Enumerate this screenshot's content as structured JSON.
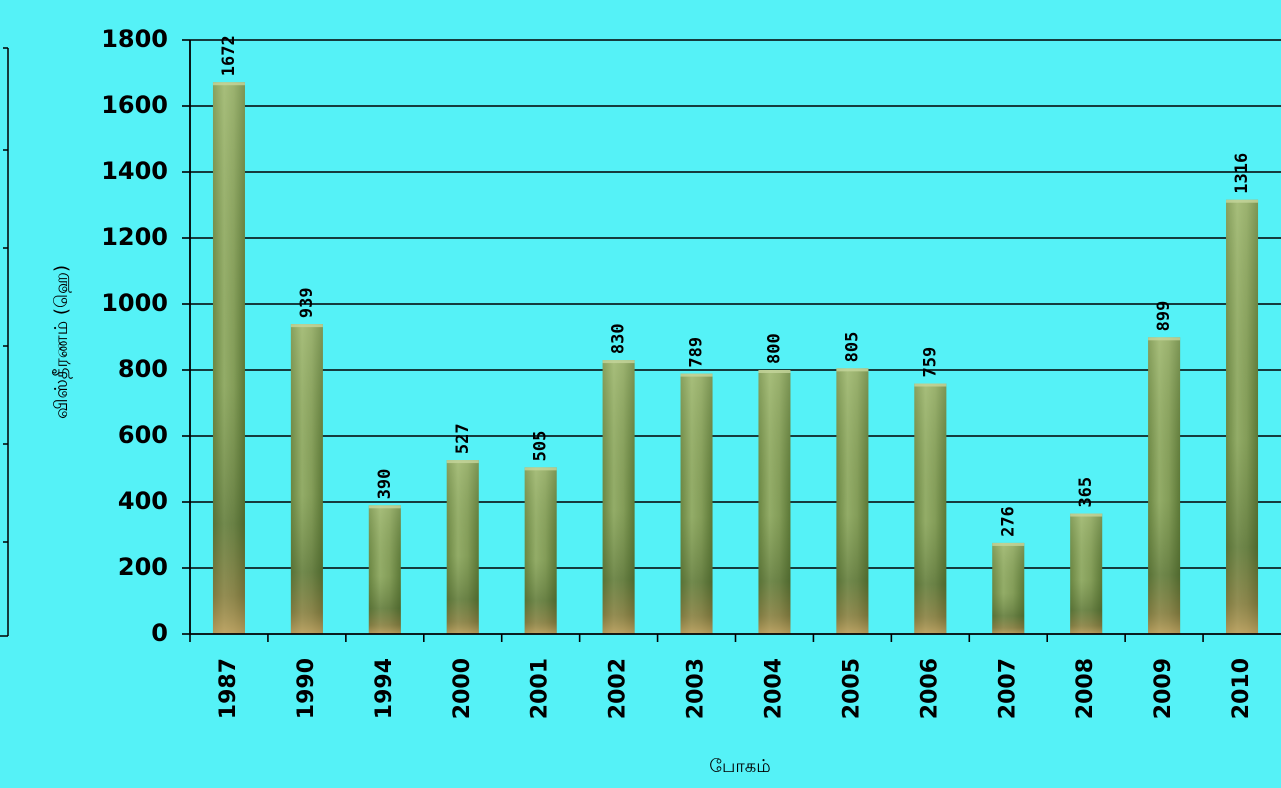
{
  "chart_data": {
    "type": "bar",
    "title": "",
    "xlabel": "போகம்",
    "ylabel": "விஸ்தீரணம் (ஹெ)",
    "categories": [
      "1987",
      "1990",
      "1994",
      "2000",
      "2001",
      "2002",
      "2003",
      "2004",
      "2005",
      "2006",
      "2007",
      "2008",
      "2009",
      "2010"
    ],
    "values": [
      1672,
      939,
      390,
      527,
      505,
      830,
      789,
      800,
      805,
      759,
      276,
      365,
      899,
      1316
    ],
    "data_labels": [
      "1672",
      "939",
      "390",
      "527",
      "505",
      "830",
      "789",
      "800",
      "805",
      "759",
      "276",
      "365",
      "899",
      "1316"
    ],
    "ylim": [
      0,
      1800
    ],
    "yticks": [
      0,
      200,
      400,
      600,
      800,
      1000,
      1200,
      1400,
      1600,
      1800
    ],
    "ytick_labels": [
      "0",
      "200",
      "400",
      "600",
      "800",
      "1000",
      "1200",
      "1400",
      "1600",
      "1800"
    ],
    "grid": true,
    "legend": "none",
    "colors": {
      "background": "#55F2F7",
      "bar_light": "#A8BE78",
      "bar_dark": "#4F6A2E",
      "bar_base": "#C9A063",
      "grid": "#000000"
    }
  }
}
